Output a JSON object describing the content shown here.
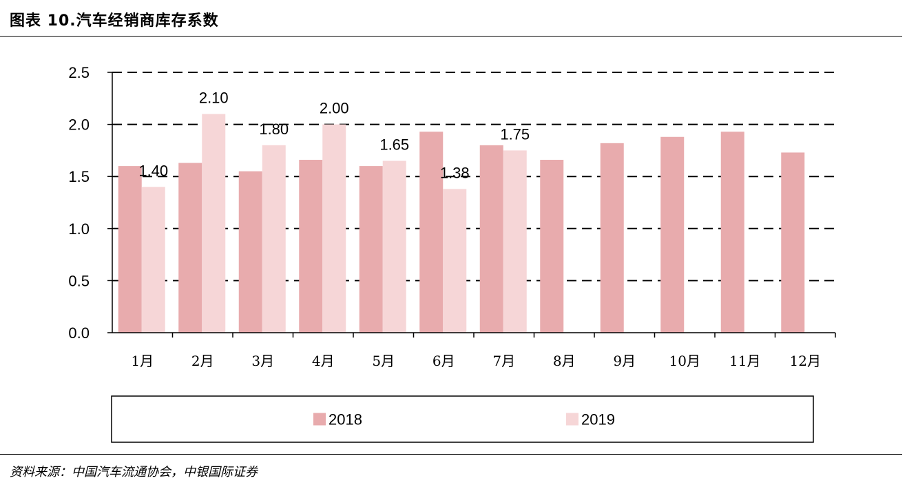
{
  "header": {
    "title": "图表 10.汽车经销商库存系数"
  },
  "source": {
    "text": "资料来源：中国汽车流通协会，中银国际证券"
  },
  "chart_data": {
    "type": "bar",
    "title": "",
    "xlabel": "",
    "ylabel": "",
    "ylim": [
      0,
      2.5
    ],
    "yticks": [
      "0.0",
      "0.5",
      "1.0",
      "1.5",
      "2.0",
      "2.5"
    ],
    "grid": "horizontal-dashed",
    "legend_position": "bottom",
    "categories": [
      "1月",
      "2月",
      "3月",
      "4月",
      "5月",
      "6月",
      "7月",
      "8月",
      "9月",
      "10月",
      "11月",
      "12月"
    ],
    "series": [
      {
        "name": "2018",
        "color": "#e8abad",
        "values": [
          1.6,
          1.63,
          1.55,
          1.66,
          1.6,
          1.93,
          1.8,
          1.66,
          1.82,
          1.88,
          1.93,
          1.73
        ],
        "labels": [
          "",
          "",
          "",
          "",
          "",
          "",
          "",
          "",
          "",
          "",
          "",
          ""
        ]
      },
      {
        "name": "2019",
        "color": "#f6d6d7",
        "values": [
          1.4,
          2.1,
          1.8,
          2.0,
          1.65,
          1.38,
          1.75,
          null,
          null,
          null,
          null,
          null
        ],
        "labels": [
          "1.40",
          "2.10",
          "1.80",
          "2.00",
          "1.65",
          "1.38",
          "1.75",
          "",
          "",
          "",
          "",
          ""
        ]
      }
    ]
  }
}
